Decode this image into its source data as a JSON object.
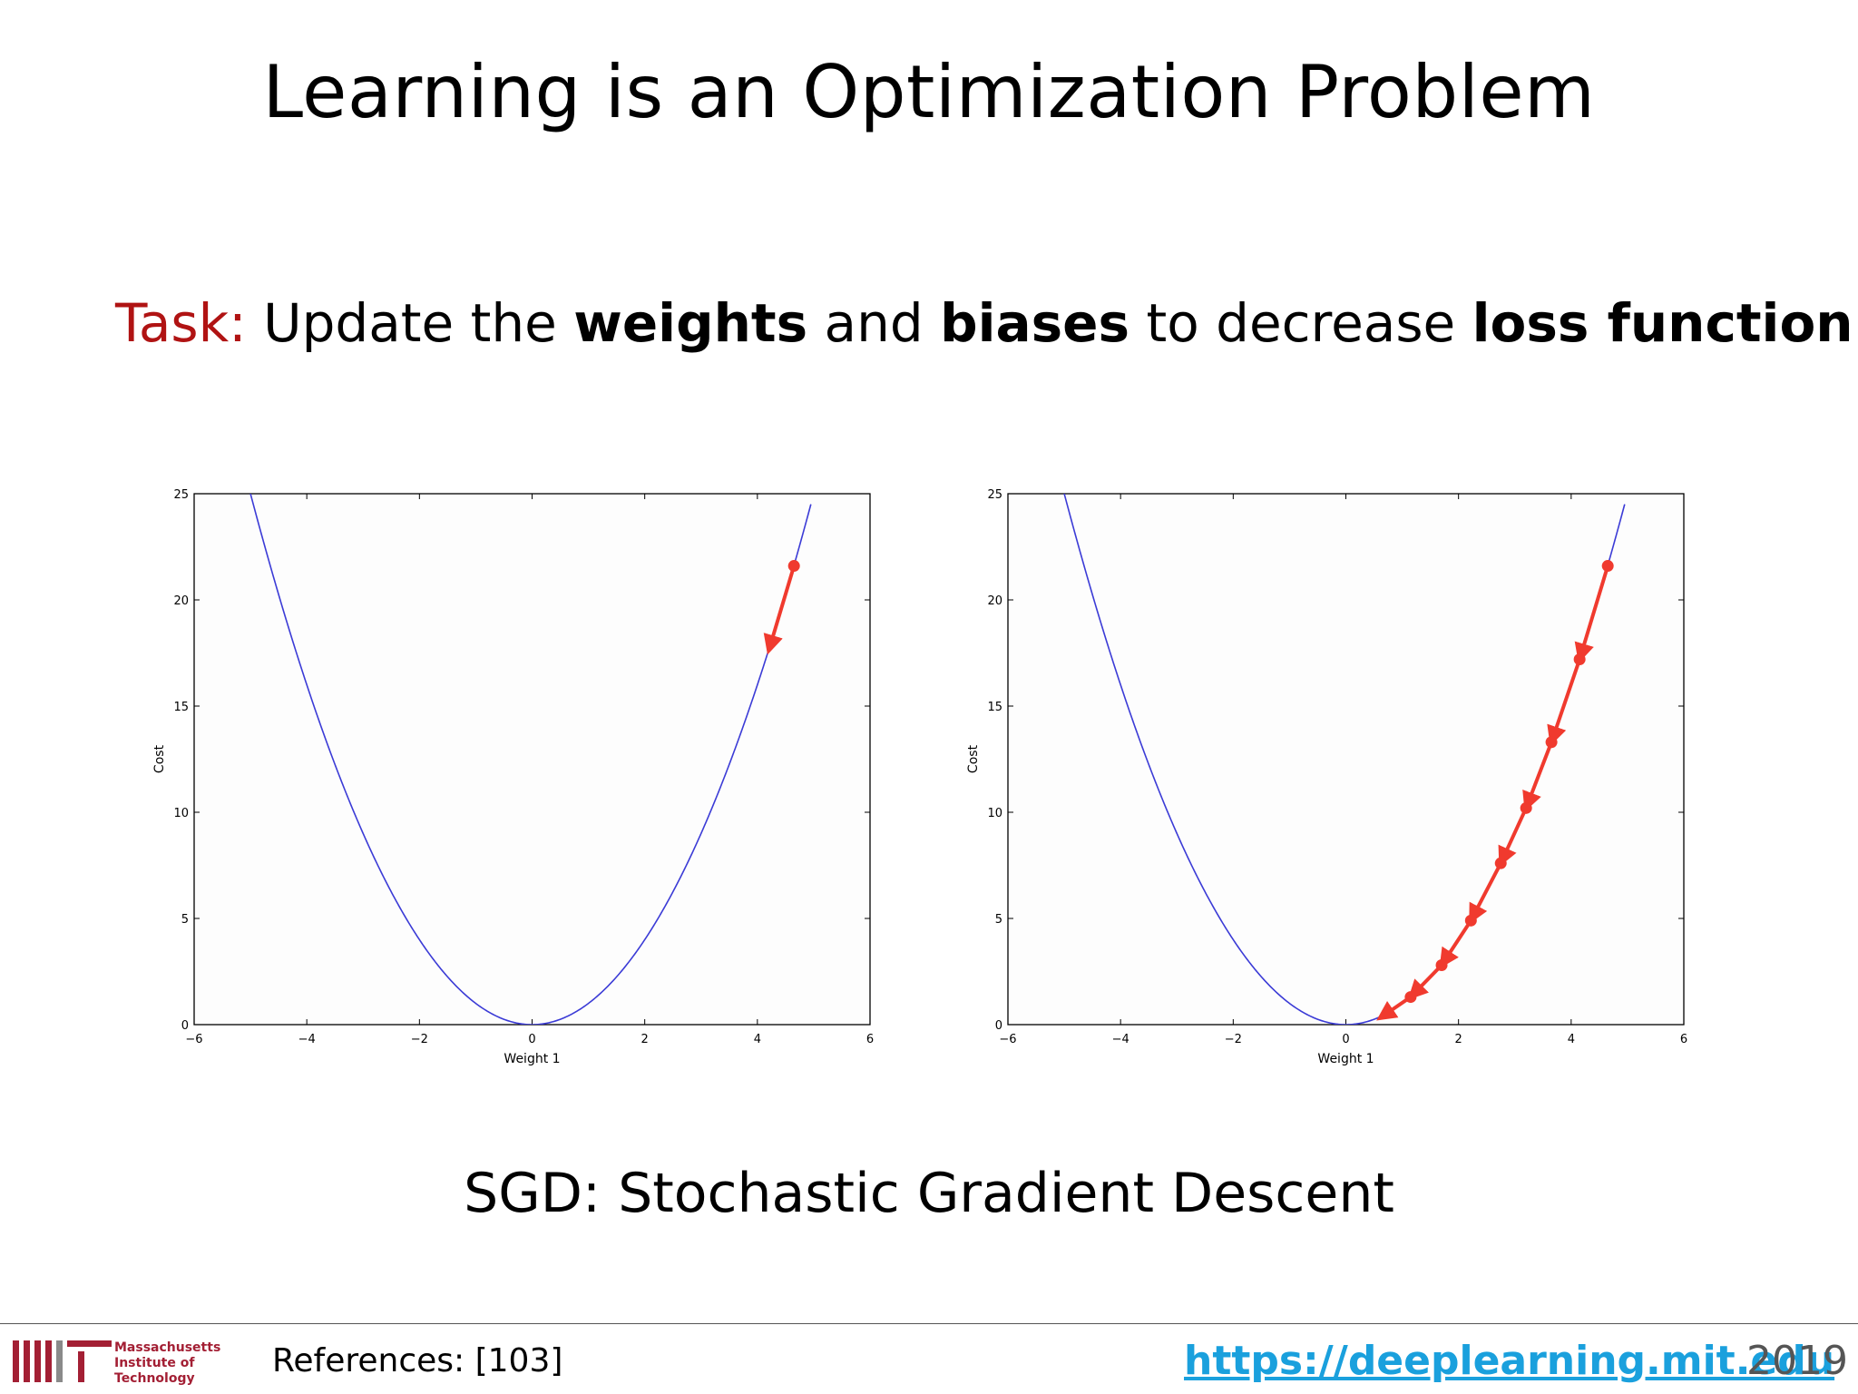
{
  "slide": {
    "title": "Learning is an Optimization Problem",
    "task_prefix": "Task:",
    "task_parts": [
      " Update the ",
      "weights",
      " and ",
      "biases",
      " to decrease ",
      "loss function"
    ],
    "subtitle": "SGD: Stochastic Gradient Descent"
  },
  "footer": {
    "logo_lines": [
      "Massachusetts",
      "Institute of",
      "Technology"
    ],
    "references": "References: [103]",
    "url": "https://deeplearning.mit.edu",
    "year": "2019"
  },
  "colors": {
    "task_accent": "#b01313",
    "curve": "#3b3bd6",
    "steps": "#f03a2e",
    "url": "#1aa0dd",
    "mit_red": "#a31f34"
  },
  "chart_data": [
    {
      "type": "line",
      "title": "",
      "xlabel": "Weight 1",
      "ylabel": "Cost",
      "xlim": [
        -6,
        6
      ],
      "ylim": [
        0,
        25
      ],
      "xticks": [
        -6,
        -4,
        -2,
        0,
        2,
        4,
        6
      ],
      "yticks": [
        0,
        5,
        10,
        15,
        20,
        25
      ],
      "xtick_labels": [
        "−6",
        "−4",
        "−2",
        "0",
        "2",
        "4",
        "6"
      ],
      "ytick_labels": [
        "0",
        "5",
        "10",
        "15",
        "20",
        "25"
      ],
      "curve": {
        "function": "y = x^2",
        "x_range": [
          -5,
          4.95
        ]
      },
      "descent_steps": [
        [
          4.65,
          21.6
        ],
        [
          4.2,
          17.6
        ]
      ]
    },
    {
      "type": "line",
      "title": "",
      "xlabel": "Weight 1",
      "ylabel": "Cost",
      "xlim": [
        -6,
        6
      ],
      "ylim": [
        0,
        25
      ],
      "xticks": [
        -6,
        -4,
        -2,
        0,
        2,
        4,
        6
      ],
      "yticks": [
        0,
        5,
        10,
        15,
        20,
        25
      ],
      "xtick_labels": [
        "−6",
        "−4",
        "−2",
        "0",
        "2",
        "4",
        "6"
      ],
      "ytick_labels": [
        "0",
        "5",
        "10",
        "15",
        "20",
        "25"
      ],
      "curve": {
        "function": "y = x^2",
        "x_range": [
          -5,
          4.95
        ]
      },
      "descent_steps": [
        [
          4.65,
          21.6
        ],
        [
          4.15,
          17.2
        ],
        [
          3.65,
          13.3
        ],
        [
          3.2,
          10.2
        ],
        [
          2.75,
          7.6
        ],
        [
          2.22,
          4.9
        ],
        [
          1.7,
          2.8
        ],
        [
          1.15,
          1.3
        ],
        [
          0.6,
          0.3
        ]
      ]
    }
  ]
}
